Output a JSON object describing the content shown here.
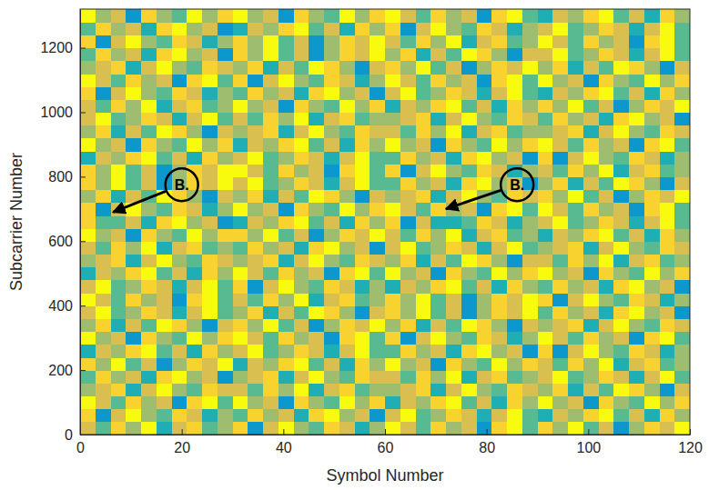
{
  "chart_data": {
    "type": "heatmap",
    "xlabel": "Symbol Number",
    "ylabel": "Subcarrier Number",
    "xlim": [
      0,
      120
    ],
    "ylim": [
      0,
      1320
    ],
    "xticks": [
      0,
      20,
      40,
      60,
      80,
      100,
      120
    ],
    "yticks": [
      0,
      200,
      400,
      600,
      800,
      1000,
      1200
    ],
    "grid": false,
    "color_range": [
      0,
      9
    ],
    "x_edges": [
      0,
      3,
      6,
      9,
      12,
      15,
      18,
      21,
      24,
      27,
      30,
      33,
      36,
      39,
      42,
      45,
      48,
      51,
      54,
      57,
      60,
      63,
      66,
      69,
      72,
      75,
      78,
      81,
      84,
      87,
      90,
      93,
      96,
      99,
      102,
      105,
      108,
      111,
      114,
      117,
      120
    ],
    "y_edges": [
      0,
      40,
      80,
      120,
      160,
      200,
      240,
      280,
      320,
      360,
      400,
      440,
      480,
      520,
      560,
      600,
      640,
      680,
      720,
      760,
      800,
      840,
      880,
      920,
      960,
      1000,
      1040,
      1080,
      1120,
      1160,
      1200,
      1240,
      1280,
      1320
    ],
    "values": [
      [
        7,
        5,
        8,
        6,
        9,
        4,
        7,
        8,
        5,
        6,
        8,
        3,
        7,
        9,
        6,
        5,
        8,
        7,
        4,
        6,
        9,
        7,
        5,
        8,
        6,
        7,
        3,
        8,
        9,
        5,
        8,
        6,
        9,
        5,
        7,
        3,
        6,
        8,
        7,
        9
      ],
      [
        8,
        3,
        7,
        9,
        6,
        5,
        8,
        7,
        4,
        6,
        5,
        8,
        6,
        7,
        4,
        8,
        9,
        6,
        7,
        3,
        7,
        9,
        5,
        6,
        8,
        7,
        4,
        7,
        9,
        5,
        4,
        7,
        6,
        8,
        9,
        5,
        7,
        4,
        8,
        6
      ],
      [
        9,
        7,
        5,
        8,
        6,
        7,
        3,
        8,
        9,
        5,
        9,
        6,
        7,
        3,
        8,
        6,
        5,
        9,
        6,
        8,
        4,
        7,
        6,
        8,
        9,
        5,
        7,
        4,
        8,
        6,
        9,
        6,
        7,
        3,
        8,
        6,
        5,
        9,
        6,
        8
      ],
      [
        6,
        7,
        8,
        4,
        7,
        9,
        6,
        5,
        8,
        7,
        7,
        5,
        8,
        6,
        9,
        4,
        7,
        8,
        5,
        6,
        6,
        7,
        8,
        4,
        7,
        9,
        6,
        5,
        8,
        7,
        6,
        8,
        4,
        7,
        5,
        9,
        8,
        6,
        3,
        7
      ],
      [
        5,
        8,
        6,
        7,
        4,
        8,
        9,
        6,
        7,
        3,
        6,
        7,
        8,
        4,
        7,
        9,
        6,
        5,
        8,
        7,
        7,
        5,
        8,
        6,
        9,
        4,
        7,
        8,
        5,
        6,
        7,
        9,
        5,
        6,
        8,
        7,
        4,
        7,
        9,
        5
      ],
      [
        8,
        6,
        9,
        5,
        7,
        3,
        6,
        8,
        7,
        9,
        4,
        7,
        6,
        8,
        9,
        5,
        7,
        4,
        8,
        6,
        9,
        6,
        7,
        3,
        8,
        6,
        5,
        9,
        6,
        8,
        7,
        5,
        8,
        6,
        9,
        4,
        7,
        8,
        5,
        6
      ],
      [
        4,
        7,
        6,
        8,
        9,
        5,
        7,
        4,
        8,
        6,
        7,
        9,
        5,
        6,
        8,
        7,
        4,
        7,
        9,
        5,
        5,
        8,
        6,
        7,
        4,
        8,
        9,
        6,
        7,
        3,
        8,
        3,
        7,
        9,
        6,
        5,
        8,
        7,
        4,
        6
      ],
      [
        9,
        6,
        7,
        3,
        8,
        6,
        5,
        9,
        6,
        8,
        9,
        7,
        5,
        8,
        6,
        7,
        3,
        8,
        9,
        5,
        8,
        3,
        7,
        9,
        6,
        5,
        8,
        7,
        4,
        6,
        9,
        7,
        5,
        8,
        6,
        7,
        3,
        8,
        9,
        5
      ],
      [
        6,
        8,
        4,
        7,
        5,
        9,
        8,
        6,
        3,
        7,
        8,
        6,
        9,
        5,
        7,
        3,
        6,
        8,
        7,
        9,
        6,
        8,
        4,
        7,
        5,
        9,
        8,
        6,
        3,
        7,
        6,
        7,
        8,
        4,
        7,
        9,
        6,
        5,
        8,
        7
      ],
      [
        7,
        9,
        5,
        6,
        8,
        7,
        4,
        7,
        9,
        5,
        6,
        8,
        4,
        7,
        5,
        9,
        8,
        6,
        3,
        7,
        8,
        6,
        9,
        5,
        7,
        3,
        6,
        8,
        7,
        9,
        5,
        8,
        6,
        7,
        4,
        8,
        9,
        6,
        7,
        3
      ],
      [
        9,
        7,
        5,
        8,
        6,
        7,
        3,
        8,
        9,
        5,
        7,
        5,
        8,
        6,
        9,
        4,
        7,
        8,
        5,
        6,
        8,
        6,
        9,
        5,
        7,
        3,
        6,
        8,
        7,
        9,
        8,
        3,
        7,
        9,
        6,
        5,
        8,
        7,
        4,
        6
      ],
      [
        7,
        9,
        5,
        6,
        8,
        7,
        4,
        7,
        9,
        5,
        8,
        3,
        7,
        9,
        6,
        5,
        8,
        7,
        4,
        6,
        4,
        7,
        6,
        8,
        9,
        5,
        7,
        4,
        8,
        6,
        5,
        8,
        6,
        7,
        4,
        8,
        9,
        6,
        7,
        3
      ],
      [
        4,
        7,
        6,
        8,
        9,
        5,
        7,
        4,
        8,
        6,
        9,
        7,
        5,
        8,
        6,
        7,
        3,
        8,
        9,
        5,
        9,
        6,
        7,
        3,
        8,
        6,
        5,
        9,
        6,
        8,
        9,
        6,
        7,
        3,
        8,
        6,
        5,
        9,
        6,
        8
      ],
      [
        6,
        7,
        8,
        4,
        7,
        9,
        6,
        5,
        8,
        7,
        6,
        7,
        8,
        4,
        7,
        9,
        6,
        5,
        8,
        7,
        6,
        8,
        4,
        7,
        5,
        9,
        8,
        6,
        3,
        7,
        7,
        5,
        8,
        6,
        9,
        4,
        7,
        8,
        5,
        6
      ],
      [
        7,
        5,
        8,
        6,
        9,
        4,
        7,
        8,
        5,
        6,
        5,
        8,
        6,
        7,
        4,
        8,
        9,
        6,
        7,
        3,
        7,
        9,
        5,
        6,
        8,
        7,
        4,
        7,
        9,
        5,
        6,
        7,
        8,
        4,
        7,
        9,
        6,
        5,
        8,
        7
      ],
      [
        9,
        6,
        7,
        3,
        8,
        6,
        5,
        9,
        6,
        8,
        8,
        6,
        9,
        5,
        7,
        3,
        6,
        8,
        7,
        9,
        7,
        5,
        8,
        6,
        9,
        4,
        7,
        8,
        5,
        6,
        4,
        7,
        6,
        8,
        9,
        5,
        7,
        4,
        8,
        6
      ],
      [
        8,
        5,
        5,
        7,
        4,
        8,
        9,
        6,
        7,
        3,
        4,
        7,
        6,
        8,
        9,
        5,
        7,
        4,
        8,
        6,
        8,
        3,
        7,
        4,
        4,
        5,
        8,
        7,
        4,
        6,
        7,
        9,
        5,
        6,
        8,
        7,
        4,
        7,
        9,
        5
      ],
      [
        8,
        3,
        7,
        9,
        6,
        5,
        8,
        7,
        4,
        6,
        9,
        6,
        7,
        3,
        8,
        6,
        5,
        9,
        6,
        8,
        9,
        7,
        5,
        8,
        6,
        7,
        3,
        8,
        9,
        5,
        9,
        7,
        5,
        8,
        6,
        7,
        3,
        8,
        9,
        5
      ],
      [
        6,
        8,
        4,
        7,
        5,
        9,
        8,
        6,
        3,
        7,
        6,
        8,
        4,
        7,
        5,
        9,
        8,
        6,
        3,
        7,
        6,
        7,
        8,
        4,
        7,
        9,
        6,
        5,
        8,
        7,
        8,
        6,
        9,
        5,
        7,
        3,
        6,
        8,
        7,
        9
      ],
      [
        8,
        6,
        9,
        5,
        7,
        3,
        6,
        8,
        7,
        9,
        7,
        9,
        5,
        6,
        8,
        7,
        4,
        7,
        9,
        5,
        5,
        8,
        6,
        7,
        4,
        8,
        9,
        6,
        7,
        3,
        6,
        8,
        4,
        7,
        5,
        9,
        8,
        6,
        3,
        7
      ],
      [
        8,
        6,
        9,
        5,
        7,
        3,
        6,
        8,
        7,
        9,
        9,
        7,
        5,
        8,
        6,
        7,
        3,
        8,
        9,
        5,
        8,
        3,
        7,
        9,
        6,
        5,
        8,
        7,
        4,
        6,
        7,
        5,
        8,
        6,
        9,
        4,
        7,
        8,
        5,
        6
      ],
      [
        4,
        7,
        6,
        8,
        9,
        5,
        7,
        4,
        8,
        6,
        7,
        9,
        5,
        6,
        8,
        7,
        4,
        7,
        9,
        5,
        5,
        8,
        6,
        7,
        4,
        8,
        9,
        6,
        7,
        3,
        8,
        3,
        7,
        9,
        6,
        5,
        8,
        7,
        4,
        6
      ],
      [
        9,
        6,
        7,
        3,
        8,
        6,
        5,
        9,
        6,
        8,
        4,
        7,
        6,
        8,
        9,
        5,
        7,
        4,
        8,
        6,
        9,
        6,
        7,
        3,
        8,
        6,
        5,
        9,
        6,
        8,
        9,
        7,
        5,
        8,
        6,
        7,
        3,
        8,
        9,
        5
      ],
      [
        6,
        8,
        4,
        7,
        5,
        9,
        8,
        6,
        3,
        7,
        6,
        7,
        8,
        4,
        7,
        9,
        6,
        5,
        8,
        7,
        7,
        5,
        8,
        6,
        9,
        4,
        7,
        8,
        5,
        6,
        6,
        7,
        8,
        4,
        7,
        9,
        6,
        5,
        8,
        7
      ],
      [
        7,
        9,
        5,
        6,
        8,
        7,
        4,
        7,
        9,
        5,
        7,
        5,
        8,
        6,
        9,
        4,
        7,
        8,
        5,
        6,
        6,
        7,
        8,
        4,
        7,
        9,
        6,
        5,
        8,
        7,
        5,
        8,
        6,
        7,
        4,
        8,
        9,
        6,
        7,
        3
      ],
      [
        7,
        5,
        8,
        6,
        9,
        4,
        7,
        8,
        5,
        6,
        9,
        6,
        7,
        3,
        8,
        6,
        5,
        9,
        6,
        8,
        4,
        7,
        6,
        8,
        9,
        5,
        7,
        4,
        8,
        6,
        8,
        6,
        9,
        5,
        7,
        3,
        6,
        8,
        7,
        9
      ],
      [
        8,
        3,
        7,
        9,
        6,
        5,
        8,
        7,
        4,
        6,
        5,
        8,
        6,
        7,
        4,
        8,
        9,
        6,
        7,
        3,
        7,
        9,
        5,
        6,
        8,
        7,
        4,
        7,
        9,
        5,
        4,
        7,
        6,
        8,
        9,
        5,
        7,
        4,
        8,
        6
      ],
      [
        9,
        7,
        5,
        8,
        6,
        7,
        3,
        8,
        9,
        5,
        8,
        3,
        7,
        9,
        6,
        5,
        8,
        7,
        4,
        6,
        9,
        7,
        5,
        8,
        6,
        7,
        3,
        8,
        9,
        5,
        9,
        6,
        7,
        3,
        8,
        6,
        5,
        9,
        6,
        8
      ],
      [
        6,
        7,
        8,
        4,
        7,
        9,
        6,
        5,
        8,
        7,
        6,
        8,
        4,
        7,
        5,
        9,
        8,
        6,
        3,
        7,
        8,
        6,
        9,
        5,
        7,
        3,
        6,
        8,
        7,
        9,
        6,
        8,
        4,
        7,
        5,
        9,
        8,
        6,
        3,
        7
      ],
      [
        5,
        8,
        6,
        7,
        4,
        8,
        9,
        6,
        7,
        3,
        8,
        6,
        9,
        5,
        7,
        3,
        6,
        8,
        7,
        9,
        6,
        8,
        4,
        7,
        5,
        9,
        8,
        6,
        3,
        7,
        7,
        9,
        5,
        6,
        8,
        7,
        4,
        7,
        9,
        5
      ],
      [
        8,
        3,
        7,
        9,
        6,
        5,
        8,
        7,
        4,
        6,
        8,
        6,
        9,
        5,
        7,
        3,
        6,
        8,
        7,
        9,
        7,
        5,
        8,
        6,
        9,
        4,
        7,
        8,
        5,
        6,
        9,
        7,
        5,
        8,
        6,
        7,
        3,
        8,
        9,
        5
      ],
      [
        5,
        8,
        6,
        7,
        4,
        8,
        9,
        6,
        7,
        3,
        4,
        7,
        6,
        8,
        9,
        5,
        7,
        4,
        8,
        6,
        8,
        3,
        7,
        9,
        6,
        5,
        8,
        7,
        4,
        6,
        7,
        9,
        5,
        6,
        8,
        7,
        4,
        7,
        9,
        5
      ],
      [
        9,
        6,
        7,
        3,
        8,
        6,
        5,
        9,
        6,
        8,
        9,
        6,
        7,
        3,
        8,
        6,
        5,
        9,
        6,
        8,
        9,
        7,
        5,
        8,
        6,
        7,
        3,
        8,
        9,
        5,
        4,
        7,
        6,
        8,
        9,
        5,
        7,
        4,
        8,
        6
      ]
    ],
    "annotations": [
      {
        "text": "B.",
        "x": 20,
        "y": 775,
        "target_x": 6.5,
        "target_y": 690
      },
      {
        "text": "B.",
        "x": 86,
        "y": 775,
        "target_x": 72,
        "target_y": 700
      }
    ]
  }
}
